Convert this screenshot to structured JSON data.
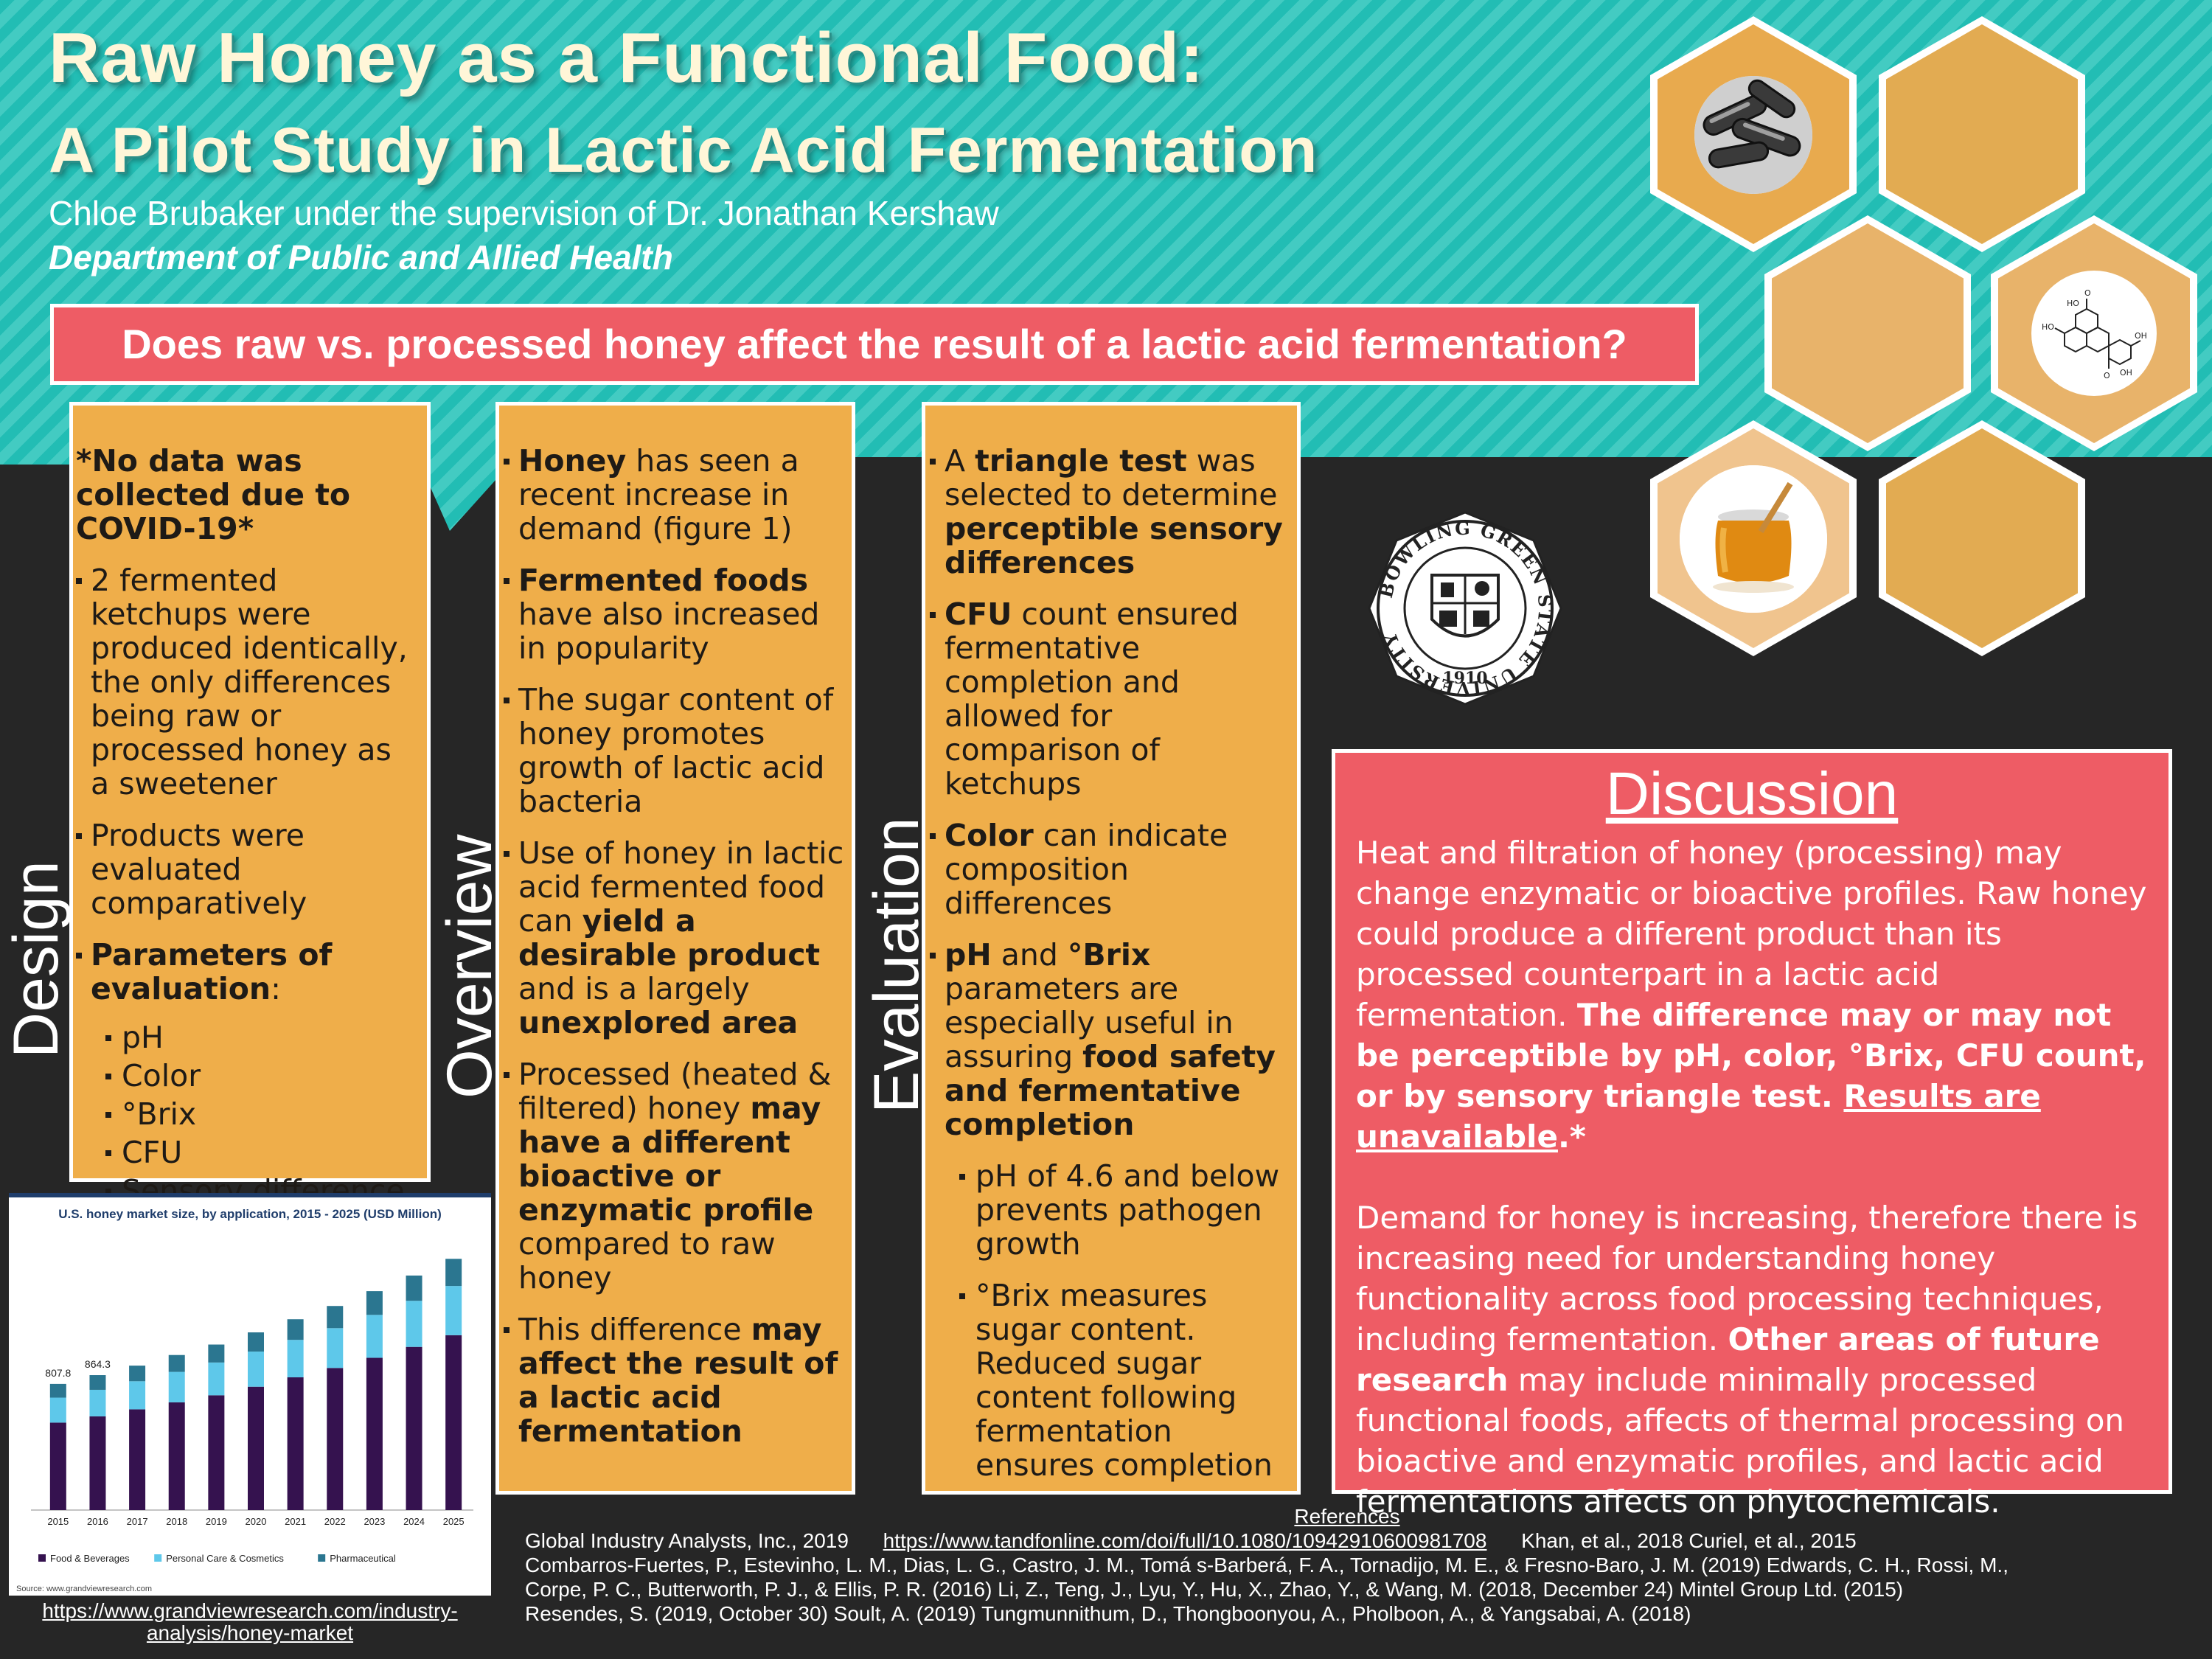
{
  "header": {
    "title_line1": "Raw Honey as a Functional Food:",
    "title_line2": "A Pilot Study in Lactic Acid Fermentation",
    "author": "Chloe Brubaker under the supervision of Dr. Jonathan Kershaw",
    "department": "Department of Public and Allied Health"
  },
  "question": "Does raw vs. processed honey affect the result of a lactic acid fermentation?",
  "design": {
    "label": "Design",
    "note": "*No data was collected due to COVID-19*",
    "bullet1": "2 fermented ketchups were produced identically, the only differences being raw or processed honey as a sweetener",
    "bullet2": "Products were evaluated comparatively",
    "params_label": "Parameters of evaluation",
    "params_colon": ":",
    "params": [
      "pH",
      "Color",
      "°Brix",
      "CFU",
      "Sensory difference"
    ]
  },
  "overview": {
    "label": "Overview",
    "b1_bold": "Honey",
    "b1_rest": " has seen a recent increase in demand (figure 1)",
    "b2_bold": "Fermented foods",
    "b2_rest": " have also increased in popularity",
    "b3": "The sugar content of honey promotes growth of lactic acid bacteria",
    "b4_a": "Use of honey in lactic acid fermented food can ",
    "b4_bold1": "yield a desirable product",
    "b4_b": " and is a largely ",
    "b4_bold2": "unexplored area",
    "b5_a": "Processed (heated & filtered) honey ",
    "b5_bold": "may have a different bioactive or enzymatic profile",
    "b5_b": " compared to raw honey",
    "b6_a": "This difference ",
    "b6_bold": "may affect the result of a lactic acid fermentation"
  },
  "evaluation": {
    "label": "Evaluation",
    "b1_a": "A ",
    "b1_bold1": "triangle test",
    "b1_b": " was selected to determine ",
    "b1_bold2": "perceptible sensory differences",
    "b2_bold": "CFU",
    "b2_rest": " count ensured fermentative completion and allowed for comparison of ketchups",
    "b3_bold": "Color",
    "b3_rest": " can indicate composition differences",
    "b4_bold1": "pH",
    "b4_a": " and ",
    "b4_bold2": "°Brix",
    "b4_b": " parameters are especially useful in assuring ",
    "b4_bold3": "food safety and fermentative completion",
    "sub1": "pH of 4.6 and below prevents pathogen growth",
    "sub2": "°Brix measures sugar content. Reduced sugar content following fermentation ensures completion"
  },
  "discussion": {
    "title": "Discussion",
    "p1_a": "Heat and filtration of honey (processing) may change enzymatic or bioactive profiles. Raw honey could produce a different product than its processed counterpart in a lactic acid fermentation. ",
    "p1_bold": "The difference may or may not be perceptible by pH, color, °Brix, CFU count, or by sensory triangle test. ",
    "p1_underline": "Results are unavailable",
    "p1_end": ".*",
    "p2_a": "Demand for honey is increasing, therefore there is increasing need for understanding honey functionality across food processing techniques, including fermentation. ",
    "p2_bold": "Other areas of future research",
    "p2_b": " may include minimally processed functional foods, affects of thermal processing on bioactive and enzymatic profiles, and lactic acid fermentations affects on phytochemicals."
  },
  "seal": {
    "ring_text": "BOWLING GREEN STATE UNIVERSITY",
    "year": "1910"
  },
  "chart_data": {
    "type": "bar",
    "title": "U.S. honey market size, by application, 2015 - 2025 (USD Million)",
    "source": "Source: www.grandviewresearch.com",
    "categories": [
      "2015",
      "2016",
      "2017",
      "2018",
      "2019",
      "2020",
      "2021",
      "2022",
      "2023",
      "2024",
      "2025"
    ],
    "series": [
      {
        "name": "Food & Beverages",
        "values": [
          560,
          600,
          645,
          690,
          735,
          790,
          850,
          910,
          975,
          1045,
          1120
        ]
      },
      {
        "name": "Personal Care & Cosmetics",
        "values": [
          160,
          170,
          180,
          195,
          210,
          225,
          240,
          255,
          275,
          295,
          315
        ]
      },
      {
        "name": "Pharmaceutical",
        "values": [
          88,
          94,
          100,
          108,
          115,
          123,
          132,
          142,
          152,
          162,
          174
        ]
      }
    ],
    "data_labels": [
      {
        "category": "2015",
        "text": "807.8"
      },
      {
        "category": "2016",
        "text": "864.3"
      }
    ],
    "colors": [
      "#35124f",
      "#5ec8ea",
      "#2b7690"
    ],
    "ylim": [
      0,
      1700
    ],
    "grid": false,
    "legend_position": "bottom"
  },
  "chart_link": "https://www.grandviewresearch.com/industry-analysis/honey-market",
  "references": {
    "title": "References",
    "line1_a": "Global Industry Analysts, Inc., 2019",
    "line1_link": "https://www.tandfonline.com/doi/full/10.1080/10942910600981708",
    "line1_b": "Khan, et al., 2018      Curiel, et al., 2015",
    "line2": "Combarros-Fuertes, P., Estevinho, L. M., Dias, L. G., Castro, J. M., Tomá s-Barberá, F. A., Tornadijo, M. E., & Fresno-Baro, J. M. (2019)      Edwards, C. H., Rossi, M.,",
    "line3": "Corpe, P. C., Butterworth, P. J., & Ellis, P. R. (2016) Li, Z., Teng, J., Lyu, Y., Hu, X., Zhao, Y., & Wang, M. (2018, December 24)      Mintel Group Ltd. (2015)",
    "line4": "Resendes, S. (2019, October 30)      Soult, A. (2019)      Tungmunnithum, D., Thongboonyou, A., Pholboon, A., & Yangsabai, A. (2018)"
  }
}
